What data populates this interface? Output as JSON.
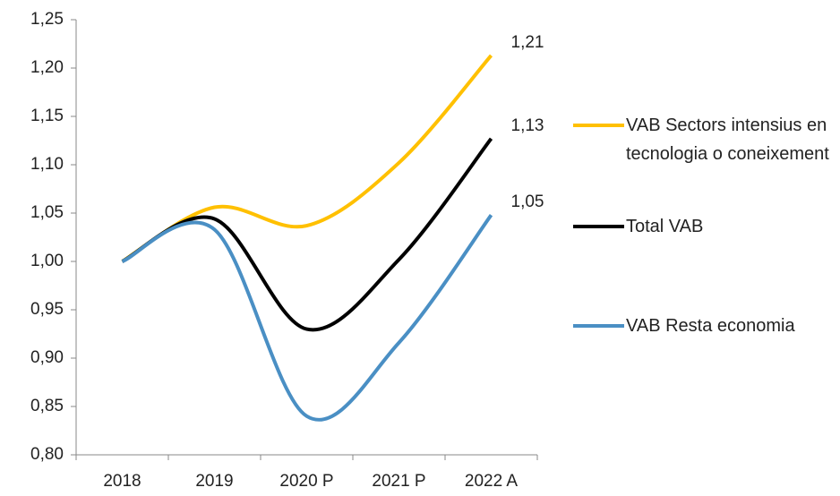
{
  "chart_data": {
    "type": "line",
    "categories": [
      "2018",
      "2019",
      "2020 P",
      "2021 P",
      "2022 A"
    ],
    "series": [
      {
        "name": "VAB Sectors intensius en tecnologia o coneixement",
        "color": "#ffc000",
        "values": [
          1.0,
          1.056,
          1.037,
          1.102,
          1.213
        ],
        "value_labels": [
          null,
          null,
          null,
          null,
          "1,21"
        ]
      },
      {
        "name": "Total VAB",
        "color": "#000000",
        "values": [
          1.0,
          1.044,
          0.93,
          1.002,
          1.127
        ],
        "value_labels": [
          null,
          null,
          null,
          null,
          "1,13"
        ]
      },
      {
        "name": "VAB Resta economia",
        "color": "#4a8fc4",
        "values": [
          1.0,
          1.033,
          0.84,
          0.916,
          1.048
        ],
        "value_labels": [
          null,
          null,
          null,
          null,
          "1,05"
        ]
      }
    ],
    "ylim": [
      0.8,
      1.25
    ],
    "yticks": [
      {
        "value": 0.8,
        "label": "0,80"
      },
      {
        "value": 0.85,
        "label": "0,85"
      },
      {
        "value": 0.9,
        "label": "0,90"
      },
      {
        "value": 0.95,
        "label": "0,95"
      },
      {
        "value": 1.0,
        "label": "1,00"
      },
      {
        "value": 1.05,
        "label": "1,05"
      },
      {
        "value": 1.1,
        "label": "1,10"
      },
      {
        "value": 1.15,
        "label": "1,15"
      },
      {
        "value": 1.2,
        "label": "1,20"
      },
      {
        "value": 1.25,
        "label": "1,25"
      }
    ],
    "legend": "right"
  }
}
